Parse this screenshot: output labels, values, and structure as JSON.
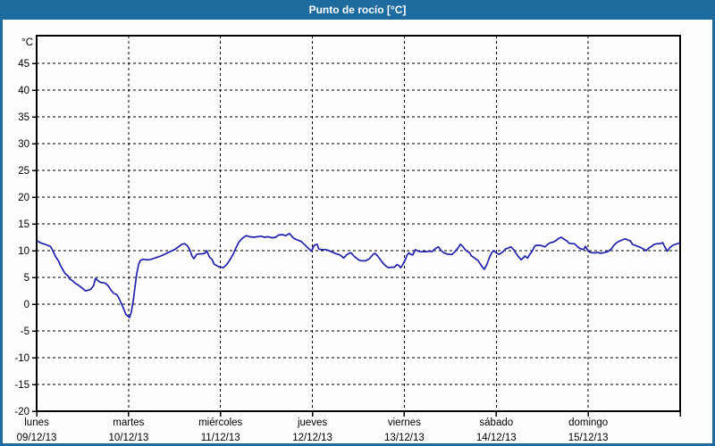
{
  "header": {
    "title": "Punto de rocío [°C]"
  },
  "colors": {
    "frame": "#1e6b9f",
    "header_bg": "#1e6b9f",
    "header_text": "#ffffff",
    "grid": "#000000",
    "axis": "#000000",
    "line": "#2121af",
    "plot_bg": "#fdfdfb"
  },
  "chart_data": {
    "type": "line",
    "title": "Punto de rocío [°C]",
    "unit_label": "°C",
    "ylabel": "°C",
    "xlabel": "",
    "ylim": [
      -20,
      50
    ],
    "y_ticks": [
      45,
      40,
      35,
      30,
      25,
      20,
      15,
      10,
      5,
      0,
      -5,
      -10,
      -15,
      -20
    ],
    "xlim_days": [
      0,
      7
    ],
    "grid": "dashed",
    "legend_position": "none",
    "x_categories": [
      {
        "day": "lunes",
        "date": "09/12/13"
      },
      {
        "day": "martes",
        "date": "10/12/13"
      },
      {
        "day": "miércoles",
        "date": "11/12/13"
      },
      {
        "day": "jueves",
        "date": "12/12/13"
      },
      {
        "day": "viernes",
        "date": "13/12/13"
      },
      {
        "day": "sábado",
        "date": "14/12/13"
      },
      {
        "day": "domingo",
        "date": "15/12/13"
      }
    ],
    "series": [
      {
        "name": "Punto de rocío",
        "color": "#2121af",
        "points": [
          [
            0.01,
            11.8
          ],
          [
            0.05,
            11.4
          ],
          [
            0.09,
            11.2
          ],
          [
            0.12,
            11.0
          ],
          [
            0.15,
            10.8
          ],
          [
            0.17,
            10.2
          ],
          [
            0.19,
            9.5
          ],
          [
            0.21,
            8.8
          ],
          [
            0.24,
            8.0
          ],
          [
            0.26,
            7.2
          ],
          [
            0.29,
            6.3
          ],
          [
            0.31,
            5.7
          ],
          [
            0.34,
            5.3
          ],
          [
            0.36,
            4.7
          ],
          [
            0.39,
            4.4
          ],
          [
            0.42,
            3.9
          ],
          [
            0.45,
            3.6
          ],
          [
            0.48,
            3.2
          ],
          [
            0.51,
            2.8
          ],
          [
            0.53,
            2.5
          ],
          [
            0.56,
            2.6
          ],
          [
            0.59,
            2.8
          ],
          [
            0.62,
            3.5
          ],
          [
            0.64,
            4.8
          ],
          [
            0.66,
            4.5
          ],
          [
            0.69,
            4.1
          ],
          [
            0.72,
            4.0
          ],
          [
            0.75,
            3.9
          ],
          [
            0.78,
            3.4
          ],
          [
            0.81,
            2.6
          ],
          [
            0.84,
            2.0
          ],
          [
            0.87,
            1.8
          ],
          [
            0.89,
            1.3
          ],
          [
            0.92,
            0.2
          ],
          [
            0.95,
            -1.0
          ],
          [
            0.97,
            -1.9
          ],
          [
            0.99,
            -2.2
          ],
          [
            1.01,
            -2.5
          ],
          [
            1.03,
            -1.5
          ],
          [
            1.05,
            0.5
          ],
          [
            1.07,
            3.3
          ],
          [
            1.09,
            5.8
          ],
          [
            1.11,
            7.5
          ],
          [
            1.13,
            8.2
          ],
          [
            1.16,
            8.4
          ],
          [
            1.19,
            8.3
          ],
          [
            1.22,
            8.3
          ],
          [
            1.25,
            8.4
          ],
          [
            1.3,
            8.7
          ],
          [
            1.35,
            9.0
          ],
          [
            1.4,
            9.4
          ],
          [
            1.45,
            9.8
          ],
          [
            1.5,
            10.2
          ],
          [
            1.55,
            10.8
          ],
          [
            1.58,
            11.2
          ],
          [
            1.61,
            11.3
          ],
          [
            1.64,
            10.9
          ],
          [
            1.67,
            10.0
          ],
          [
            1.69,
            9.0
          ],
          [
            1.71,
            8.5
          ],
          [
            1.74,
            9.3
          ],
          [
            1.77,
            9.4
          ],
          [
            1.8,
            9.4
          ],
          [
            1.83,
            9.5
          ],
          [
            1.85,
            10.0
          ],
          [
            1.88,
            8.8
          ],
          [
            1.91,
            8.3
          ],
          [
            1.93,
            7.5
          ],
          [
            1.96,
            7.2
          ],
          [
            1.98,
            7.0
          ],
          [
            2.01,
            6.9
          ],
          [
            2.03,
            6.8
          ],
          [
            2.06,
            7.3
          ],
          [
            2.08,
            7.7
          ],
          [
            2.11,
            8.5
          ],
          [
            2.14,
            9.4
          ],
          [
            2.17,
            10.6
          ],
          [
            2.2,
            11.6
          ],
          [
            2.23,
            12.2
          ],
          [
            2.26,
            12.6
          ],
          [
            2.28,
            12.8
          ],
          [
            2.32,
            12.6
          ],
          [
            2.36,
            12.5
          ],
          [
            2.4,
            12.6
          ],
          [
            2.44,
            12.7
          ],
          [
            2.48,
            12.5
          ],
          [
            2.52,
            12.6
          ],
          [
            2.56,
            12.4
          ],
          [
            2.6,
            12.5
          ],
          [
            2.63,
            12.9
          ],
          [
            2.67,
            13.0
          ],
          [
            2.71,
            12.8
          ],
          [
            2.75,
            13.2
          ],
          [
            2.79,
            12.4
          ],
          [
            2.81,
            12.2
          ],
          [
            2.85,
            11.9
          ],
          [
            2.88,
            11.7
          ],
          [
            2.91,
            11.2
          ],
          [
            2.94,
            10.7
          ],
          [
            2.97,
            10.2
          ],
          [
            2.99,
            9.9
          ],
          [
            3.02,
            11.0
          ],
          [
            3.05,
            11.2
          ],
          [
            3.07,
            10.3
          ],
          [
            3.1,
            10.2
          ],
          [
            3.14,
            10.2
          ],
          [
            3.18,
            10.0
          ],
          [
            3.22,
            9.7
          ],
          [
            3.26,
            9.4
          ],
          [
            3.3,
            9.2
          ],
          [
            3.33,
            8.8
          ],
          [
            3.34,
            8.6
          ],
          [
            3.37,
            9.2
          ],
          [
            3.4,
            9.5
          ],
          [
            3.42,
            9.6
          ],
          [
            3.45,
            9.0
          ],
          [
            3.48,
            8.6
          ],
          [
            3.51,
            8.2
          ],
          [
            3.54,
            8.1
          ],
          [
            3.58,
            8.1
          ],
          [
            3.62,
            8.5
          ],
          [
            3.66,
            9.3
          ],
          [
            3.68,
            9.5
          ],
          [
            3.71,
            9.0
          ],
          [
            3.74,
            8.3
          ],
          [
            3.77,
            7.6
          ],
          [
            3.8,
            7.1
          ],
          [
            3.83,
            6.8
          ],
          [
            3.86,
            6.9
          ],
          [
            3.89,
            6.9
          ],
          [
            3.92,
            7.4
          ],
          [
            3.94,
            7.2
          ],
          [
            3.96,
            6.8
          ],
          [
            3.98,
            7.3
          ],
          [
            4.01,
            8.3
          ],
          [
            4.03,
            9.2
          ],
          [
            4.05,
            9.6
          ],
          [
            4.07,
            9.3
          ],
          [
            4.09,
            9.2
          ],
          [
            4.12,
            10.2
          ],
          [
            4.15,
            9.9
          ],
          [
            4.18,
            9.8
          ],
          [
            4.21,
            9.8
          ],
          [
            4.24,
            9.8
          ],
          [
            4.27,
            9.9
          ],
          [
            4.3,
            9.8
          ],
          [
            4.33,
            10.3
          ],
          [
            4.36,
            10.6
          ],
          [
            4.37,
            10.7
          ],
          [
            4.4,
            10.0
          ],
          [
            4.43,
            9.6
          ],
          [
            4.46,
            9.4
          ],
          [
            4.49,
            9.3
          ],
          [
            4.52,
            9.3
          ],
          [
            4.55,
            9.8
          ],
          [
            4.58,
            10.4
          ],
          [
            4.61,
            11.2
          ],
          [
            4.64,
            10.7
          ],
          [
            4.66,
            10.2
          ],
          [
            4.69,
            9.8
          ],
          [
            4.71,
            9.6
          ],
          [
            4.73,
            9.0
          ],
          [
            4.75,
            8.8
          ],
          [
            4.78,
            8.4
          ],
          [
            4.8,
            8.2
          ],
          [
            4.83,
            7.4
          ],
          [
            4.85,
            6.9
          ],
          [
            4.87,
            6.5
          ],
          [
            4.9,
            7.5
          ],
          [
            4.92,
            8.5
          ],
          [
            4.95,
            9.6
          ],
          [
            4.97,
            10.0
          ],
          [
            5.0,
            9.6
          ],
          [
            5.03,
            9.3
          ],
          [
            5.05,
            9.5
          ],
          [
            5.08,
            9.9
          ],
          [
            5.1,
            10.3
          ],
          [
            5.13,
            10.5
          ],
          [
            5.16,
            10.7
          ],
          [
            5.19,
            10.2
          ],
          [
            5.21,
            9.6
          ],
          [
            5.24,
            8.9
          ],
          [
            5.27,
            8.3
          ],
          [
            5.29,
            8.6
          ],
          [
            5.31,
            9.0
          ],
          [
            5.34,
            8.6
          ],
          [
            5.36,
            9.2
          ],
          [
            5.39,
            9.9
          ],
          [
            5.42,
            10.9
          ],
          [
            5.44,
            11.0
          ],
          [
            5.47,
            11.0
          ],
          [
            5.5,
            10.9
          ],
          [
            5.53,
            10.7
          ],
          [
            5.56,
            11.2
          ],
          [
            5.59,
            11.5
          ],
          [
            5.62,
            11.6
          ],
          [
            5.65,
            11.9
          ],
          [
            5.68,
            12.3
          ],
          [
            5.71,
            12.5
          ],
          [
            5.74,
            12.1
          ],
          [
            5.77,
            11.8
          ],
          [
            5.79,
            11.4
          ],
          [
            5.82,
            11.3
          ],
          [
            5.85,
            11.3
          ],
          [
            5.88,
            10.8
          ],
          [
            5.9,
            10.5
          ],
          [
            5.93,
            10.3
          ],
          [
            5.95,
            10.2
          ],
          [
            5.97,
            10.8
          ],
          [
            5.99,
            10.2
          ],
          [
            6.02,
            9.7
          ],
          [
            6.05,
            9.6
          ],
          [
            6.08,
            9.6
          ],
          [
            6.11,
            9.7
          ],
          [
            6.13,
            9.5
          ],
          [
            6.16,
            9.6
          ],
          [
            6.19,
            9.7
          ],
          [
            6.22,
            9.9
          ],
          [
            6.25,
            10.3
          ],
          [
            6.28,
            11.0
          ],
          [
            6.31,
            11.5
          ],
          [
            6.34,
            11.8
          ],
          [
            6.37,
            12.0
          ],
          [
            6.4,
            12.2
          ],
          [
            6.43,
            12.0
          ],
          [
            6.46,
            11.8
          ],
          [
            6.48,
            11.2
          ],
          [
            6.51,
            11.0
          ],
          [
            6.54,
            10.8
          ],
          [
            6.57,
            10.6
          ],
          [
            6.6,
            10.3
          ],
          [
            6.63,
            10.0
          ],
          [
            6.66,
            10.5
          ],
          [
            6.69,
            10.8
          ],
          [
            6.72,
            11.2
          ],
          [
            6.75,
            11.3
          ],
          [
            6.78,
            11.3
          ],
          [
            6.81,
            11.5
          ],
          [
            6.83,
            10.8
          ],
          [
            6.86,
            9.9
          ],
          [
            6.89,
            10.6
          ],
          [
            6.92,
            11.0
          ],
          [
            6.95,
            11.2
          ],
          [
            6.99,
            11.4
          ]
        ]
      }
    ]
  }
}
